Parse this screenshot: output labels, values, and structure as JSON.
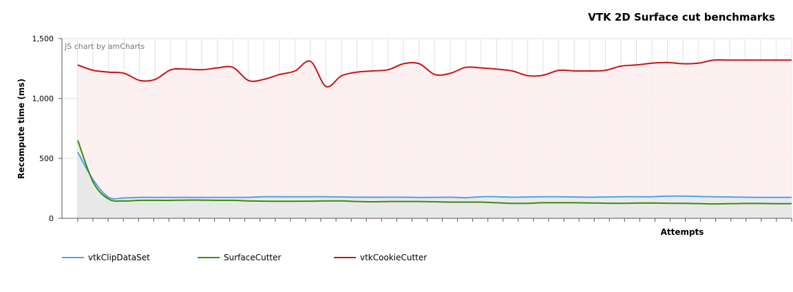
{
  "chart_data": {
    "type": "line",
    "title": "VTK 2D Surface cut benchmarks",
    "credit": "JS chart by amCharts",
    "xlabel": "Attempts",
    "ylabel": "Recompute time (ms)",
    "ylim": [
      0,
      1500
    ],
    "yticks": [
      0,
      500,
      1000,
      1500
    ],
    "ytick_labels": [
      "0",
      "500",
      "1,000",
      "1,500"
    ],
    "grid": true,
    "legend_position": "bottom-left",
    "x": [
      1,
      2,
      3,
      4,
      5,
      6,
      7,
      8,
      9,
      10,
      11,
      12,
      13,
      14,
      15,
      16,
      17,
      18,
      19,
      20,
      21,
      22,
      23,
      24,
      25,
      26,
      27,
      28,
      29,
      30,
      31,
      32,
      33,
      34,
      35,
      36,
      37,
      38,
      39,
      40,
      41,
      42,
      43,
      44,
      45,
      46,
      47
    ],
    "series": [
      {
        "name": "vtkClipDataSet",
        "color": "#4aa3e8",
        "values": [
          550,
          320,
          175,
          170,
          175,
          175,
          175,
          175,
          175,
          175,
          175,
          175,
          180,
          180,
          180,
          180,
          180,
          178,
          176,
          176,
          176,
          176,
          174,
          175,
          176,
          172,
          180,
          180,
          176,
          178,
          180,
          180,
          178,
          176,
          178,
          180,
          180,
          180,
          185,
          185,
          182,
          180,
          178,
          176,
          175,
          175,
          175
        ]
      },
      {
        "name": "SurfaceCutter",
        "color": "#3a8a0c",
        "values": [
          650,
          300,
          160,
          145,
          150,
          150,
          150,
          152,
          152,
          150,
          150,
          145,
          143,
          142,
          142,
          143,
          145,
          145,
          140,
          138,
          140,
          140,
          140,
          138,
          135,
          135,
          135,
          130,
          125,
          125,
          130,
          130,
          130,
          128,
          126,
          125,
          127,
          128,
          126,
          125,
          123,
          120,
          122,
          124,
          124,
          122,
          122
        ]
      },
      {
        "name": "vtkCookieCutter",
        "color": "#cc1111",
        "values": [
          1280,
          1235,
          1220,
          1210,
          1150,
          1160,
          1240,
          1245,
          1240,
          1255,
          1260,
          1150,
          1160,
          1200,
          1230,
          1310,
          1100,
          1190,
          1220,
          1230,
          1240,
          1290,
          1290,
          1200,
          1210,
          1260,
          1255,
          1245,
          1230,
          1190,
          1195,
          1235,
          1230,
          1230,
          1235,
          1270,
          1280,
          1295,
          1300,
          1290,
          1295,
          1320,
          1320,
          1320,
          1320,
          1320,
          1320
        ]
      }
    ]
  }
}
